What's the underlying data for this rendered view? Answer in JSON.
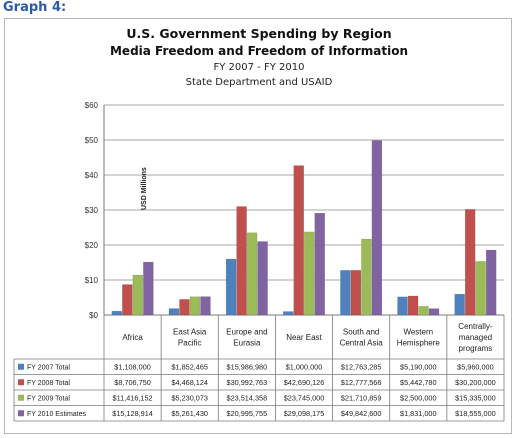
{
  "page": {
    "label": "Graph 4:"
  },
  "chart_data": {
    "type": "bar",
    "title": "U.S. Government Spending by Region",
    "subtitle": "Media Freedom and Freedom of Information",
    "subtitle2": "FY 2007 - FY 2010",
    "subtitle3": "State Department and USAID",
    "ylabel": "USD Millions",
    "ylim": [
      0,
      60
    ],
    "yticks": [
      "$0",
      "$10",
      "$20",
      "$30",
      "$40",
      "$50",
      "$60"
    ],
    "categories": [
      "Africa",
      "East Asia Pacific",
      "Europe and Eurasia",
      "Near East",
      "South and Central Asia",
      "Western Hemisphere",
      "Centrally-managed programs"
    ],
    "category_lines": [
      [
        "Africa"
      ],
      [
        "East Asia",
        "Pacific"
      ],
      [
        "Europe and",
        "Eurasia"
      ],
      [
        "Near East"
      ],
      [
        "South and",
        "Central Asia"
      ],
      [
        "Western",
        "Hemisphere"
      ],
      [
        "Centrally-",
        "managed",
        "programs"
      ]
    ],
    "grid": true,
    "legend": "table",
    "series": [
      {
        "name": "FY 2007 Total",
        "color": "#4f81bd",
        "values": [
          1.108,
          1.852,
          15.987,
          1.0,
          12.763,
          5.19,
          5.96
        ],
        "labels": [
          "$1,108,000",
          "$1,852,465",
          "$15,986,980",
          "$1,000,000",
          "$12,763,285",
          "$5,190,000",
          "$5,960,000"
        ]
      },
      {
        "name": "FY 2008 Total",
        "color": "#c0504d",
        "values": [
          8.707,
          4.468,
          30.993,
          42.69,
          12.778,
          5.443,
          30.2
        ],
        "labels": [
          "$8,706,750",
          "$4,468,124",
          "$30,992,763",
          "$42,690,126",
          "$12,777,566",
          "$5,442,780",
          "$30,200,000"
        ]
      },
      {
        "name": "FY 2009 Total",
        "color": "#9bbb59",
        "values": [
          11.416,
          5.23,
          23.514,
          23.745,
          21.711,
          2.5,
          15.335
        ],
        "labels": [
          "$11,416,152",
          "$5,230,073",
          "$23,514,358",
          "$23,745,000",
          "$21,710,859",
          "$2,500,000",
          "$15,335,000"
        ]
      },
      {
        "name": "FY 2010 Estimates",
        "color": "#8064a2",
        "values": [
          15.129,
          5.261,
          20.996,
          29.098,
          49.843,
          1.831,
          18.555
        ],
        "labels": [
          "$15,128,914",
          "$5,261,430",
          "$20,995,755",
          "$29,098,175",
          "$49,842,600",
          "$1,831,000",
          "$18,555,000"
        ]
      }
    ]
  }
}
